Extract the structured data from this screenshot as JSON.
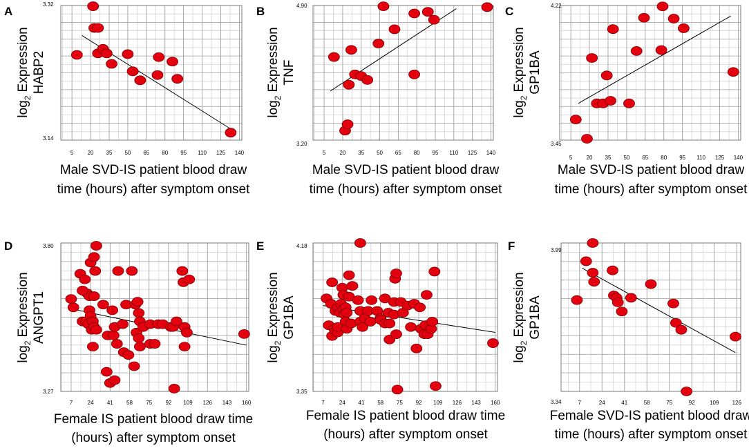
{
  "chart_data": [
    {
      "panel": "A",
      "type": "scatter",
      "ylabel_gene": "HABP2",
      "xlabel_lines": [
        "Male SVD-IS patient blood draw",
        "time (hours) after symptom onset"
      ],
      "ylim": [
        3.14,
        3.32
      ],
      "y_ticks": [
        "3.32",
        "3.14"
      ],
      "xlim": [
        -4,
        142
      ],
      "x_ticks": [
        5,
        20,
        35,
        50,
        65,
        80,
        95,
        110,
        125,
        140
      ],
      "x_tick_labels": [
        "5",
        "20",
        "35",
        "50",
        "65",
        "80",
        "95",
        "110",
        "125",
        "140"
      ],
      "points": [
        [
          9,
          3.254
        ],
        [
          22,
          3.319
        ],
        [
          23,
          3.29
        ],
        [
          26,
          3.29
        ],
        [
          26,
          3.256
        ],
        [
          30,
          3.262
        ],
        [
          33,
          3.256
        ],
        [
          37,
          3.242
        ],
        [
          50,
          3.255
        ],
        [
          54,
          3.232
        ],
        [
          60,
          3.22
        ],
        [
          75,
          3.251
        ],
        [
          74,
          3.227
        ],
        [
          86,
          3.245
        ],
        [
          90,
          3.222
        ],
        [
          133,
          3.15
        ]
      ],
      "fit": [
        [
          13,
          3.28
        ],
        [
          133,
          3.155
        ]
      ]
    },
    {
      "panel": "B",
      "type": "scatter",
      "ylabel_gene": "TNF",
      "xlabel_lines": [
        "Male SVD-IS patient blood draw",
        "time (hours) after symptom onset"
      ],
      "ylim": [
        3.2,
        4.9
      ],
      "y_ticks": [
        "4.90",
        "3.20"
      ],
      "xlim": [
        -4,
        142
      ],
      "x_ticks": [
        5,
        20,
        35,
        50,
        65,
        80,
        95,
        110,
        125,
        140
      ],
      "x_tick_labels": [
        "5",
        "20",
        "35",
        "50",
        "65",
        "80",
        "95",
        "110",
        "125",
        "140"
      ],
      "points": [
        [
          13,
          4.25
        ],
        [
          22,
          3.32
        ],
        [
          24,
          3.4
        ],
        [
          27,
          4.34
        ],
        [
          25,
          3.9
        ],
        [
          30,
          4.03
        ],
        [
          35,
          4.01
        ],
        [
          40,
          3.96
        ],
        [
          49,
          4.42
        ],
        [
          53,
          4.89
        ],
        [
          62,
          4.6
        ],
        [
          78,
          4.8
        ],
        [
          78,
          4.03
        ],
        [
          89,
          4.82
        ],
        [
          94,
          4.72
        ],
        [
          137,
          4.88
        ]
      ],
      "fit": [
        [
          10,
          3.82
        ],
        [
          112,
          4.86
        ]
      ]
    },
    {
      "panel": "C",
      "type": "scatter",
      "ylabel_gene": "GP1BA",
      "xlabel_lines": [
        "Male SVD-IS patient blood draw",
        "time (hours) after symptom onset"
      ],
      "ylim": [
        3.45,
        4.22
      ],
      "y_ticks": [
        "4.22",
        "3.45"
      ],
      "xlim": [
        -4,
        142
      ],
      "x_ticks": [
        5,
        20,
        35,
        50,
        65,
        80,
        95,
        110,
        125,
        140
      ],
      "x_tick_labels": [
        "5",
        "20",
        "35",
        "50",
        "65",
        "80",
        "95",
        "110",
        "125",
        "140"
      ],
      "points": [
        [
          9,
          3.568
        ],
        [
          18,
          3.458
        ],
        [
          22,
          3.92
        ],
        [
          26,
          3.66
        ],
        [
          31,
          3.66
        ],
        [
          34,
          3.82
        ],
        [
          37,
          3.675
        ],
        [
          39,
          4.085
        ],
        [
          52,
          3.66
        ],
        [
          58,
          3.96
        ],
        [
          64,
          4.15
        ],
        [
          79,
          4.215
        ],
        [
          78,
          3.965
        ],
        [
          88,
          4.145
        ],
        [
          96,
          4.09
        ],
        [
          136,
          3.84
        ]
      ],
      "fit": [
        [
          11,
          3.66
        ],
        [
          134,
          4.16
        ]
      ]
    },
    {
      "panel": "D",
      "type": "scatter",
      "ylabel_gene": "ANGPT1",
      "xlabel_lines": [
        "Female IS patient blood draw time",
        "(hours) after symptom onset"
      ],
      "ylim": [
        3.27,
        3.8
      ],
      "y_ticks": [
        "3.80",
        "3.27"
      ],
      "xlim": [
        -2,
        162
      ],
      "x_ticks": [
        7,
        24,
        41,
        58,
        75,
        92,
        109,
        126,
        143,
        160
      ],
      "x_tick_labels": [
        "7",
        "24",
        "41",
        "58",
        "75",
        "92",
        "109",
        "126",
        "143",
        "160"
      ],
      "points": [
        [
          7,
          3.6
        ],
        [
          9,
          3.57
        ],
        [
          15,
          3.69
        ],
        [
          17,
          3.52
        ],
        [
          19,
          3.67
        ],
        [
          21,
          3.62
        ],
        [
          23,
          3.61
        ],
        [
          27,
          3.61
        ],
        [
          17,
          3.63
        ],
        [
          20,
          3.52
        ],
        [
          22,
          3.51
        ],
        [
          23,
          3.56
        ],
        [
          24,
          3.54
        ],
        [
          26,
          3.52
        ],
        [
          25,
          3.49
        ],
        [
          27,
          3.5
        ],
        [
          29,
          3.49
        ],
        [
          26,
          3.43
        ],
        [
          28,
          3.7
        ],
        [
          24,
          3.73
        ],
        [
          27,
          3.75
        ],
        [
          29,
          3.79
        ],
        [
          35,
          3.58
        ],
        [
          39,
          3.47
        ],
        [
          38,
          3.34
        ],
        [
          43,
          3.56
        ],
        [
          44,
          3.47
        ],
        [
          45,
          3.5
        ],
        [
          47,
          3.44
        ],
        [
          41,
          3.3
        ],
        [
          45,
          3.31
        ],
        [
          48,
          3.7
        ],
        [
          52,
          3.51
        ],
        [
          53,
          3.41
        ],
        [
          55,
          3.58
        ],
        [
          57,
          3.4
        ],
        [
          60,
          3.7
        ],
        [
          62,
          3.36
        ],
        [
          63,
          3.58
        ],
        [
          65,
          3.59
        ],
        [
          66,
          3.55
        ],
        [
          64,
          3.48
        ],
        [
          66,
          3.46
        ],
        [
          67,
          3.52
        ],
        [
          67,
          3.43
        ],
        [
          70,
          3.5
        ],
        [
          76,
          3.44
        ],
        [
          76,
          3.51
        ],
        [
          80,
          3.44
        ],
        [
          83,
          3.51
        ],
        [
          87,
          3.51
        ],
        [
          94,
          3.5
        ],
        [
          96,
          3.5
        ],
        [
          97,
          3.28
        ],
        [
          99,
          3.52
        ],
        [
          105,
          3.66
        ],
        [
          104,
          3.7
        ],
        [
          106,
          3.5
        ],
        [
          108,
          3.48
        ],
        [
          106,
          3.43
        ],
        [
          110,
          3.67
        ],
        [
          158,
          3.475
        ]
      ],
      "fit": [
        [
          7,
          3.565
        ],
        [
          160,
          3.435
        ]
      ]
    },
    {
      "panel": "E",
      "type": "scatter",
      "ylabel_gene": "GP1BA",
      "xlabel_lines": [
        "Female IS patient blood draw time",
        "(hours) after symptom onset"
      ],
      "ylim": [
        3.35,
        4.18
      ],
      "y_ticks": [
        "4.18",
        "3.35"
      ],
      "xlim": [
        -2,
        162
      ],
      "x_ticks": [
        7,
        24,
        41,
        58,
        75,
        92,
        109,
        126,
        143,
        160
      ],
      "x_tick_labels": [
        "7",
        "24",
        "41",
        "58",
        "75",
        "92",
        "109",
        "126",
        "143",
        "160"
      ],
      "points": [
        [
          10,
          3.87
        ],
        [
          12,
          3.72
        ],
        [
          14,
          3.84
        ],
        [
          15,
          3.66
        ],
        [
          15,
          3.96
        ],
        [
          17,
          3.7
        ],
        [
          18,
          3.8
        ],
        [
          18,
          3.69
        ],
        [
          20,
          3.68
        ],
        [
          20,
          3.82
        ],
        [
          20,
          3.71
        ],
        [
          22,
          3.79
        ],
        [
          23,
          3.84
        ],
        [
          24,
          3.93
        ],
        [
          25,
          3.89
        ],
        [
          25,
          3.81
        ],
        [
          26,
          3.78
        ],
        [
          27,
          3.74
        ],
        [
          27,
          3.82
        ],
        [
          28,
          3.79
        ],
        [
          28,
          3.7
        ],
        [
          30,
          3.88
        ],
        [
          32,
          3.73
        ],
        [
          30,
          4.0
        ],
        [
          33,
          3.94
        ],
        [
          38,
          3.86
        ],
        [
          40,
          3.8
        ],
        [
          40,
          3.74
        ],
        [
          40,
          4.18
        ],
        [
          42,
          3.71
        ],
        [
          44,
          3.76
        ],
        [
          47,
          3.8
        ],
        [
          49,
          3.74
        ],
        [
          50,
          3.86
        ],
        [
          55,
          3.8
        ],
        [
          58,
          3.76
        ],
        [
          58,
          3.75
        ],
        [
          62,
          3.87
        ],
        [
          62,
          3.73
        ],
        [
          65,
          3.79
        ],
        [
          66,
          3.64
        ],
        [
          66,
          3.73
        ],
        [
          70,
          3.85
        ],
        [
          70,
          3.78
        ],
        [
          71,
          3.98
        ],
        [
          72,
          4.01
        ],
        [
          72,
          3.67
        ],
        [
          73,
          3.36
        ],
        [
          76,
          3.85
        ],
        [
          78,
          3.79
        ],
        [
          82,
          3.83
        ],
        [
          85,
          3.71
        ],
        [
          88,
          3.84
        ],
        [
          90,
          3.59
        ],
        [
          93,
          3.82
        ],
        [
          94,
          3.7
        ],
        [
          97,
          3.67
        ],
        [
          99,
          3.89
        ],
        [
          98,
          3.72
        ],
        [
          100,
          3.67
        ],
        [
          103,
          3.7
        ],
        [
          104,
          3.74
        ],
        [
          106,
          4.02
        ],
        [
          107,
          3.38
        ],
        [
          158,
          3.62
        ]
      ],
      "fit": [
        [
          7,
          3.83
        ],
        [
          160,
          3.68
        ]
      ]
    },
    {
      "panel": "F",
      "type": "scatter",
      "ylabel_gene": "GP1BA",
      "xlabel_lines": [
        "Female SVD-IS patient blood draw",
        "time (hours) after symptom onset"
      ],
      "ylim": [
        3.34,
        3.99
      ],
      "y_ticks": [
        "3.99",
        "3.34"
      ],
      "xlim": [
        -7,
        129
      ],
      "x_ticks": [
        7,
        24,
        41,
        58,
        75,
        92,
        109,
        126
      ],
      "x_tick_labels": [
        "7",
        "24",
        "41",
        "58",
        "75",
        "92",
        "109",
        "126"
      ],
      "points": [
        [
          5,
          3.74
        ],
        [
          12,
          3.91
        ],
        [
          17,
          3.99
        ],
        [
          17,
          3.86
        ],
        [
          18,
          3.82
        ],
        [
          32,
          3.87
        ],
        [
          33,
          3.76
        ],
        [
          35,
          3.75
        ],
        [
          36,
          3.73
        ],
        [
          39,
          3.69
        ],
        [
          46,
          3.75
        ],
        [
          61,
          3.81
        ],
        [
          78,
          3.725
        ],
        [
          80,
          3.64
        ],
        [
          84,
          3.61
        ],
        [
          88,
          3.34
        ],
        [
          125,
          3.58
        ]
      ],
      "fit": [
        [
          9,
          3.88
        ],
        [
          125,
          3.51
        ]
      ]
    }
  ]
}
